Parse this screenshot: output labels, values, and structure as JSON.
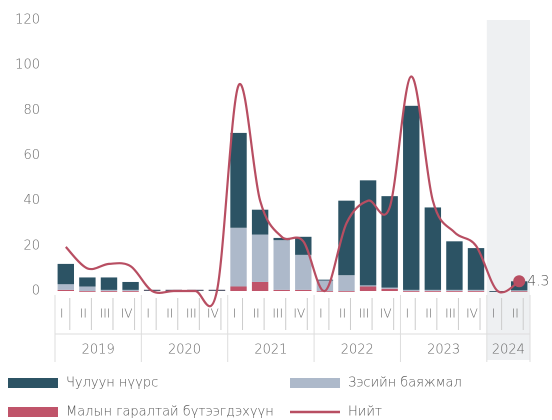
{
  "chart_data": {
    "type": "stacked_bar_line",
    "groups": [
      {
        "label": "2019",
        "categories": [
          "I",
          "II",
          "III",
          "IV"
        ]
      },
      {
        "label": "2020",
        "categories": [
          "I",
          "II",
          "III",
          "IV"
        ]
      },
      {
        "label": "2021",
        "categories": [
          "I",
          "II",
          "III",
          "IV"
        ]
      },
      {
        "label": "2022",
        "categories": [
          "I",
          "II",
          "III",
          "IV"
        ]
      },
      {
        "label": "2023",
        "categories": [
          "I",
          "II",
          "III",
          "IV"
        ]
      },
      {
        "label": "2024",
        "categories": [
          "I",
          "II"
        ]
      }
    ],
    "series": [
      {
        "name": "Малын гаралтай бүтээгдэхүүн",
        "color": "#c0546a",
        "kind": "bar",
        "values": [
          0.5,
          0,
          0,
          0,
          0.5,
          0.5,
          0.5,
          0.5,
          2,
          4,
          0.5,
          0.5,
          0,
          0,
          2,
          1,
          0,
          0,
          0,
          0,
          0,
          0
        ]
      },
      {
        "name": "Зэсийн баяжмал",
        "color": "#adb9ca",
        "kind": "bar",
        "values": [
          2.5,
          2,
          0.5,
          0.5,
          0,
          0,
          0,
          0,
          26,
          21,
          22,
          15.5,
          5,
          7,
          0.5,
          0.5,
          0.5,
          0.5,
          0.5,
          0.5,
          0,
          0.3
        ]
      },
      {
        "name": "Чулуун нүүрс",
        "color": "#2c5364",
        "kind": "bar",
        "values": [
          9,
          4,
          5.5,
          3.5,
          0,
          0,
          0,
          0,
          42,
          11,
          1,
          8,
          0,
          33,
          46.5,
          40.5,
          81.5,
          36.5,
          21.5,
          18.5,
          0,
          4
        ]
      },
      {
        "name": "Нийт",
        "color": "#b84e62",
        "kind": "line",
        "values": [
          19.5,
          10,
          12,
          11,
          0,
          0,
          0,
          0,
          91,
          40,
          24,
          22,
          0,
          30,
          40,
          37,
          95,
          40,
          26,
          20,
          0,
          4.3
        ]
      }
    ],
    "ylim": [
      0,
      120
    ],
    "yticks": [
      0,
      20,
      40,
      60,
      80,
      100,
      120
    ]
  }
}
